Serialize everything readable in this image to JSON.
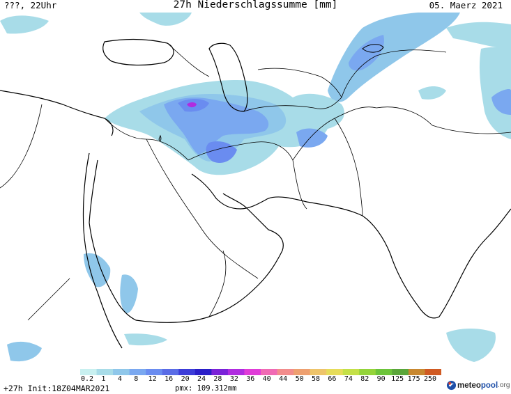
{
  "header": {
    "left": "???, 22Uhr",
    "center": "27h Niederschlagssumme [mm]",
    "right": "05. Maerz 2021"
  },
  "legend": {
    "labels": [
      "0.2",
      "1",
      "4",
      "8",
      "12",
      "16",
      "20",
      "24",
      "28",
      "32",
      "36",
      "40",
      "44",
      "50",
      "58",
      "66",
      "74",
      "82",
      "90",
      "125",
      "175",
      "250"
    ],
    "colors": [
      "#c8f0f0",
      "#a8dce8",
      "#8fc7ea",
      "#7aa8f0",
      "#6a8cf0",
      "#5a6ce6",
      "#3c3cd8",
      "#2a1ec8",
      "#7a22d8",
      "#b02ce0",
      "#e03cd8",
      "#f06ab4",
      "#f28c8c",
      "#eea070",
      "#eec46a",
      "#e6dc5a",
      "#c4e048",
      "#94d43a",
      "#6cc43a",
      "#5aa63a",
      "#c88830",
      "#d05a22"
    ]
  },
  "footer": {
    "left": "+27h Init:18Z04MAR2021",
    "center": "pmx: 109.312mm"
  },
  "logo": {
    "part1": "meteo",
    "part2": "pool",
    "part3": ".org"
  }
}
